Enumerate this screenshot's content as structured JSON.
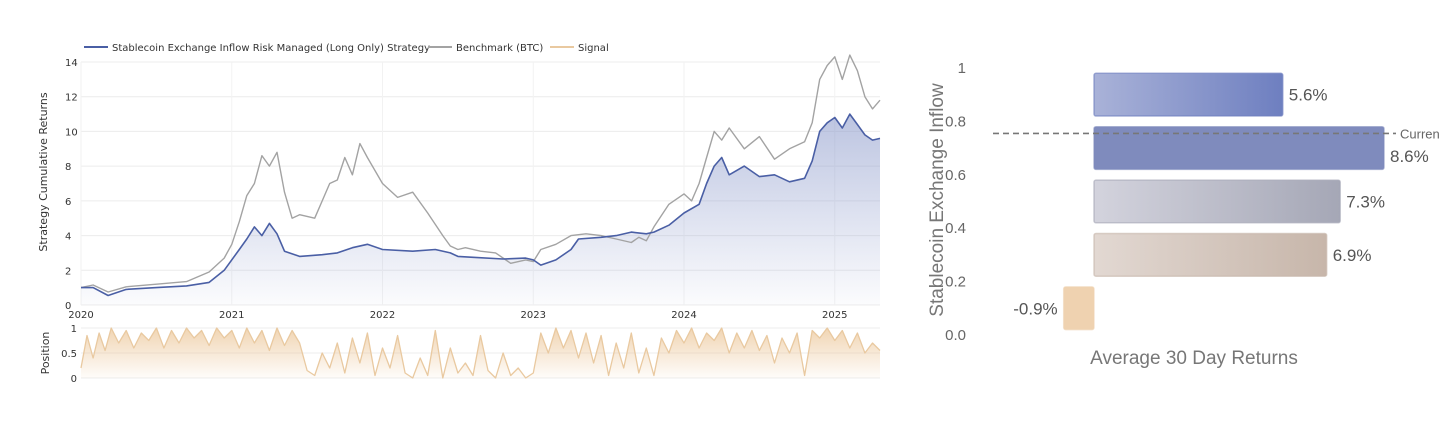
{
  "chart_data": [
    {
      "type": "line",
      "legend": {
        "placement": "top-left",
        "entries": [
          {
            "label": "Stablecoin Exchange Inflow Risk Managed (Long Only) Strategy",
            "color": "#4a5fa5"
          },
          {
            "label": "Benchmark (BTC)",
            "color": "#a3a3a3"
          },
          {
            "label": "Signal",
            "color": "#e9c9a0"
          }
        ]
      },
      "ylabel": "Strategy Cumulative Returns",
      "ylim": [
        0,
        14
      ],
      "yticks": [
        "0",
        "2",
        "4",
        "6",
        "8",
        "10",
        "12",
        "14"
      ],
      "xlim": [
        2020,
        2025.3
      ],
      "xticks": [
        "2020",
        "2021",
        "2022",
        "2023",
        "2024",
        "2025"
      ],
      "grid": true,
      "series": [
        {
          "name": "Stablecoin Exchange Inflow Risk Managed (Long Only) Strategy",
          "color": "#4a5fa5",
          "fill": true,
          "points": [
            [
              2020.0,
              1.0
            ],
            [
              2020.08,
              1.0
            ],
            [
              2020.18,
              0.55
            ],
            [
              2020.3,
              0.9
            ],
            [
              2020.5,
              1.0
            ],
            [
              2020.7,
              1.1
            ],
            [
              2020.85,
              1.3
            ],
            [
              2020.95,
              2.0
            ],
            [
              2021.05,
              3.2
            ],
            [
              2021.1,
              3.8
            ],
            [
              2021.15,
              4.5
            ],
            [
              2021.2,
              4.0
            ],
            [
              2021.25,
              4.7
            ],
            [
              2021.3,
              4.1
            ],
            [
              2021.35,
              3.1
            ],
            [
              2021.45,
              2.8
            ],
            [
              2021.6,
              2.9
            ],
            [
              2021.7,
              3.0
            ],
            [
              2021.8,
              3.3
            ],
            [
              2021.9,
              3.5
            ],
            [
              2022.0,
              3.2
            ],
            [
              2022.2,
              3.1
            ],
            [
              2022.35,
              3.2
            ],
            [
              2022.45,
              3.0
            ],
            [
              2022.5,
              2.8
            ],
            [
              2022.6,
              2.75
            ],
            [
              2022.8,
              2.65
            ],
            [
              2022.95,
              2.7
            ],
            [
              2023.0,
              2.6
            ],
            [
              2023.05,
              2.3
            ],
            [
              2023.15,
              2.6
            ],
            [
              2023.25,
              3.2
            ],
            [
              2023.3,
              3.8
            ],
            [
              2023.45,
              3.9
            ],
            [
              2023.55,
              4.0
            ],
            [
              2023.65,
              4.2
            ],
            [
              2023.75,
              4.1
            ],
            [
              2023.8,
              4.2
            ],
            [
              2023.9,
              4.6
            ],
            [
              2024.0,
              5.3
            ],
            [
              2024.1,
              5.8
            ],
            [
              2024.15,
              7.0
            ],
            [
              2024.2,
              8.0
            ],
            [
              2024.25,
              8.5
            ],
            [
              2024.3,
              7.5
            ],
            [
              2024.4,
              8.0
            ],
            [
              2024.5,
              7.4
            ],
            [
              2024.6,
              7.5
            ],
            [
              2024.7,
              7.1
            ],
            [
              2024.8,
              7.3
            ],
            [
              2024.85,
              8.3
            ],
            [
              2024.9,
              10.0
            ],
            [
              2024.95,
              10.5
            ],
            [
              2025.0,
              10.8
            ],
            [
              2025.05,
              10.2
            ],
            [
              2025.1,
              11.0
            ],
            [
              2025.15,
              10.4
            ],
            [
              2025.2,
              9.8
            ],
            [
              2025.25,
              9.5
            ],
            [
              2025.3,
              9.6
            ]
          ]
        },
        {
          "name": "Benchmark (BTC)",
          "color": "#a3a3a3",
          "points": [
            [
              2020.0,
              1.0
            ],
            [
              2020.08,
              1.15
            ],
            [
              2020.18,
              0.75
            ],
            [
              2020.3,
              1.05
            ],
            [
              2020.5,
              1.2
            ],
            [
              2020.7,
              1.35
            ],
            [
              2020.85,
              1.9
            ],
            [
              2020.95,
              2.7
            ],
            [
              2021.0,
              3.5
            ],
            [
              2021.05,
              4.8
            ],
            [
              2021.1,
              6.3
            ],
            [
              2021.15,
              7.0
            ],
            [
              2021.2,
              8.6
            ],
            [
              2021.25,
              8.0
            ],
            [
              2021.3,
              8.8
            ],
            [
              2021.35,
              6.5
            ],
            [
              2021.4,
              5.0
            ],
            [
              2021.45,
              5.2
            ],
            [
              2021.55,
              5.0
            ],
            [
              2021.6,
              6.0
            ],
            [
              2021.65,
              7.0
            ],
            [
              2021.7,
              7.2
            ],
            [
              2021.75,
              8.5
            ],
            [
              2021.8,
              7.5
            ],
            [
              2021.85,
              9.3
            ],
            [
              2021.9,
              8.5
            ],
            [
              2022.0,
              7.0
            ],
            [
              2022.1,
              6.2
            ],
            [
              2022.2,
              6.5
            ],
            [
              2022.3,
              5.3
            ],
            [
              2022.4,
              4.0
            ],
            [
              2022.45,
              3.4
            ],
            [
              2022.5,
              3.2
            ],
            [
              2022.55,
              3.3
            ],
            [
              2022.65,
              3.1
            ],
            [
              2022.75,
              3.0
            ],
            [
              2022.85,
              2.4
            ],
            [
              2022.95,
              2.6
            ],
            [
              2023.0,
              2.5
            ],
            [
              2023.05,
              3.2
            ],
            [
              2023.15,
              3.5
            ],
            [
              2023.25,
              4.0
            ],
            [
              2023.35,
              4.1
            ],
            [
              2023.45,
              4.0
            ],
            [
              2023.55,
              3.8
            ],
            [
              2023.65,
              3.6
            ],
            [
              2023.7,
              3.9
            ],
            [
              2023.75,
              3.7
            ],
            [
              2023.8,
              4.5
            ],
            [
              2023.9,
              5.8
            ],
            [
              2024.0,
              6.4
            ],
            [
              2024.05,
              6.0
            ],
            [
              2024.1,
              7.0
            ],
            [
              2024.15,
              8.5
            ],
            [
              2024.2,
              10.0
            ],
            [
              2024.25,
              9.5
            ],
            [
              2024.3,
              10.2
            ],
            [
              2024.4,
              9.0
            ],
            [
              2024.5,
              9.7
            ],
            [
              2024.6,
              8.4
            ],
            [
              2024.7,
              9.0
            ],
            [
              2024.8,
              9.4
            ],
            [
              2024.85,
              10.5
            ],
            [
              2024.9,
              13.0
            ],
            [
              2024.95,
              13.8
            ],
            [
              2025.0,
              14.3
            ],
            [
              2025.05,
              13.0
            ],
            [
              2025.1,
              14.4
            ],
            [
              2025.15,
              13.5
            ],
            [
              2025.2,
              12.0
            ],
            [
              2025.25,
              11.3
            ],
            [
              2025.3,
              11.8
            ]
          ]
        }
      ]
    },
    {
      "type": "area",
      "ylabel": "Position",
      "ylim": [
        0,
        1
      ],
      "yticks": [
        "0",
        "0.5",
        "1"
      ],
      "series": [
        {
          "name": "Signal",
          "color": "#e9c9a0",
          "points": [
            [
              2020.0,
              0.2
            ],
            [
              2020.04,
              0.85
            ],
            [
              2020.08,
              0.4
            ],
            [
              2020.12,
              0.9
            ],
            [
              2020.16,
              0.55
            ],
            [
              2020.2,
              1.0
            ],
            [
              2020.25,
              0.7
            ],
            [
              2020.3,
              0.95
            ],
            [
              2020.35,
              0.6
            ],
            [
              2020.4,
              0.9
            ],
            [
              2020.45,
              0.75
            ],
            [
              2020.5,
              1.0
            ],
            [
              2020.55,
              0.6
            ],
            [
              2020.6,
              0.95
            ],
            [
              2020.65,
              0.7
            ],
            [
              2020.7,
              1.0
            ],
            [
              2020.75,
              0.8
            ],
            [
              2020.8,
              0.95
            ],
            [
              2020.85,
              0.65
            ],
            [
              2020.9,
              1.0
            ],
            [
              2020.95,
              0.8
            ],
            [
              2021.0,
              0.95
            ],
            [
              2021.05,
              0.6
            ],
            [
              2021.1,
              1.0
            ],
            [
              2021.15,
              0.7
            ],
            [
              2021.2,
              0.95
            ],
            [
              2021.25,
              0.55
            ],
            [
              2021.3,
              1.0
            ],
            [
              2021.35,
              0.65
            ],
            [
              2021.4,
              0.95
            ],
            [
              2021.45,
              0.7
            ],
            [
              2021.5,
              0.15
            ],
            [
              2021.55,
              0.05
            ],
            [
              2021.6,
              0.5
            ],
            [
              2021.65,
              0.2
            ],
            [
              2021.7,
              0.7
            ],
            [
              2021.75,
              0.1
            ],
            [
              2021.8,
              0.8
            ],
            [
              2021.85,
              0.3
            ],
            [
              2021.9,
              0.9
            ],
            [
              2021.95,
              0.05
            ],
            [
              2022.0,
              0.6
            ],
            [
              2022.05,
              0.2
            ],
            [
              2022.1,
              0.85
            ],
            [
              2022.15,
              0.1
            ],
            [
              2022.2,
              0.0
            ],
            [
              2022.25,
              0.4
            ],
            [
              2022.3,
              0.05
            ],
            [
              2022.35,
              0.95
            ],
            [
              2022.4,
              0.0
            ],
            [
              2022.45,
              0.6
            ],
            [
              2022.5,
              0.1
            ],
            [
              2022.55,
              0.3
            ],
            [
              2022.6,
              0.05
            ],
            [
              2022.65,
              0.85
            ],
            [
              2022.7,
              0.15
            ],
            [
              2022.75,
              0.0
            ],
            [
              2022.8,
              0.5
            ],
            [
              2022.85,
              0.05
            ],
            [
              2022.9,
              0.2
            ],
            [
              2022.95,
              0.0
            ],
            [
              2023.0,
              0.1
            ],
            [
              2023.05,
              0.9
            ],
            [
              2023.1,
              0.5
            ],
            [
              2023.15,
              1.0
            ],
            [
              2023.2,
              0.6
            ],
            [
              2023.25,
              0.95
            ],
            [
              2023.3,
              0.4
            ],
            [
              2023.35,
              0.9
            ],
            [
              2023.4,
              0.3
            ],
            [
              2023.45,
              0.85
            ],
            [
              2023.5,
              0.05
            ],
            [
              2023.55,
              0.7
            ],
            [
              2023.6,
              0.2
            ],
            [
              2023.65,
              0.9
            ],
            [
              2023.7,
              0.1
            ],
            [
              2023.75,
              0.6
            ],
            [
              2023.8,
              0.05
            ],
            [
              2023.85,
              0.8
            ],
            [
              2023.9,
              0.5
            ],
            [
              2023.95,
              0.95
            ],
            [
              2024.0,
              0.7
            ],
            [
              2024.05,
              1.0
            ],
            [
              2024.1,
              0.6
            ],
            [
              2024.15,
              0.9
            ],
            [
              2024.2,
              0.75
            ],
            [
              2024.25,
              1.0
            ],
            [
              2024.3,
              0.5
            ],
            [
              2024.35,
              0.9
            ],
            [
              2024.4,
              0.6
            ],
            [
              2024.45,
              0.95
            ],
            [
              2024.5,
              0.55
            ],
            [
              2024.55,
              0.85
            ],
            [
              2024.6,
              0.3
            ],
            [
              2024.65,
              0.8
            ],
            [
              2024.7,
              0.5
            ],
            [
              2024.75,
              0.9
            ],
            [
              2024.8,
              0.05
            ],
            [
              2024.85,
              0.95
            ],
            [
              2024.9,
              0.8
            ],
            [
              2024.95,
              1.0
            ],
            [
              2025.0,
              0.75
            ],
            [
              2025.05,
              0.95
            ],
            [
              2025.1,
              0.6
            ],
            [
              2025.15,
              0.9
            ],
            [
              2025.2,
              0.5
            ],
            [
              2025.25,
              0.7
            ],
            [
              2025.3,
              0.55
            ]
          ]
        }
      ]
    },
    {
      "type": "bar",
      "orientation": "horizontal",
      "xlabel": "Average 30 Day Returns",
      "ylabel": "Stablecoin Exchange Inflow",
      "ylim": [
        0.0,
        1.0
      ],
      "yticks": [
        "0.0",
        "0.2",
        "0.4",
        "0.6",
        "0.8",
        "1"
      ],
      "xlim": [
        -0.02,
        0.12
      ],
      "current": {
        "value": 0.755,
        "label": "Curren"
      },
      "bars": [
        {
          "bin": [
            0.82,
            0.98
          ],
          "value": 0.056,
          "label": "5.6%",
          "color_left": "#a9b2d8",
          "color_right": "#6e7fc0"
        },
        {
          "bin": [
            0.62,
            0.78
          ],
          "value": 0.086,
          "label": "8.6%",
          "color_left": "#7f8bbd",
          "color_right": "#7f8bbd"
        },
        {
          "bin": [
            0.42,
            0.58
          ],
          "value": 0.073,
          "label": "7.3%",
          "color_left": "#d3d3dd",
          "color_right": "#a5a7b6"
        },
        {
          "bin": [
            0.22,
            0.38
          ],
          "value": 0.069,
          "label": "6.9%",
          "color_left": "#e2d8d2",
          "color_right": "#c7b6aa"
        },
        {
          "bin": [
            0.02,
            0.18
          ],
          "value": -0.009,
          "label": "-0.9%",
          "color_left": "#efd2b0",
          "color_right": "#efd2b0"
        }
      ]
    }
  ]
}
